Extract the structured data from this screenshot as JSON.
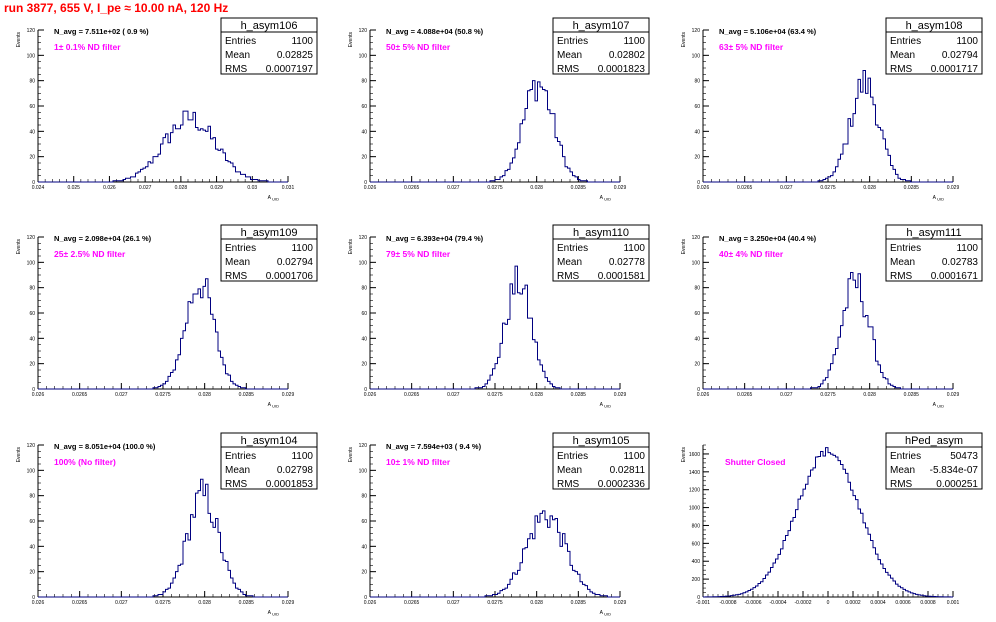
{
  "page_title": "run 3877,   655 V, I_pe ≈ 10.00 nA, 120 Hz",
  "chart_data": [
    {
      "type": "histogram",
      "name": "h_asym106",
      "navg": "N_avg = 7.511e+02 ( 0.9 %)",
      "note": "1± 0.1% ND filter",
      "stats": {
        "Entries": "1100",
        "Mean": "0.02825",
        "RMS": "0.0007197"
      },
      "xlim": [
        0.024,
        0.031
      ],
      "xticks": [
        "0.024",
        "0.025",
        "0.026",
        "0.027",
        "0.028",
        "0.029",
        "0.03",
        "0.031"
      ],
      "xlabel": "A_UID",
      "ylabel": "Events",
      "ylim": [
        0,
        120
      ],
      "yticks": [
        "0",
        "20",
        "40",
        "60",
        "80",
        "100",
        "120"
      ],
      "mean": 0.02825,
      "rms": 0.0007197,
      "peak": 50,
      "nbins": 100
    },
    {
      "type": "histogram",
      "name": "h_asym107",
      "navg": "N_avg = 4.088e+04 (50.8 %)",
      "note": "50± 5% ND filter",
      "stats": {
        "Entries": "1100",
        "Mean": "0.02802",
        "RMS": "0.0001823"
      },
      "xlim": [
        0.026,
        0.029
      ],
      "xticks": [
        "0.026",
        "0.0265",
        "0.027",
        "0.0275",
        "0.028",
        "0.0285",
        "0.029"
      ],
      "xlabel": "A_UID",
      "ylabel": "Events",
      "ylim": [
        0,
        120
      ],
      "yticks": [
        "0",
        "20",
        "40",
        "60",
        "80",
        "100",
        "120"
      ],
      "mean": 0.02802,
      "rms": 0.0001823,
      "peak": 78,
      "nbins": 100
    },
    {
      "type": "histogram",
      "name": "h_asym108",
      "navg": "N_avg = 5.106e+04 (63.4 %)",
      "note": "63± 5% ND filter",
      "stats": {
        "Entries": "1100",
        "Mean": "0.02794",
        "RMS": "0.0001717"
      },
      "xlim": [
        0.026,
        0.029
      ],
      "xticks": [
        "0.026",
        "0.0265",
        "0.027",
        "0.0275",
        "0.028",
        "0.0285",
        "0.029"
      ],
      "xlabel": "A_UID",
      "ylabel": "Events",
      "ylim": [
        0,
        120
      ],
      "yticks": [
        "0",
        "20",
        "40",
        "60",
        "80",
        "100",
        "120"
      ],
      "mean": 0.02794,
      "rms": 0.0001717,
      "peak": 78,
      "nbins": 100
    },
    {
      "type": "histogram",
      "name": "h_asym109",
      "navg": "N_avg = 2.098e+04 (26.1 %)",
      "note": "25± 2.5% ND filter",
      "stats": {
        "Entries": "1100",
        "Mean": "0.02794",
        "RMS": "0.0001706"
      },
      "xlim": [
        0.026,
        0.029
      ],
      "xticks": [
        "0.026",
        "0.0265",
        "0.027",
        "0.0275",
        "0.028",
        "0.0285",
        "0.029"
      ],
      "xlabel": "A_UID",
      "ylabel": "Events",
      "ylim": [
        0,
        120
      ],
      "yticks": [
        "0",
        "20",
        "40",
        "60",
        "80",
        "100",
        "120"
      ],
      "mean": 0.02794,
      "rms": 0.0001706,
      "peak": 84,
      "nbins": 100
    },
    {
      "type": "histogram",
      "name": "h_asym110",
      "navg": "N_avg = 6.393e+04 (79.4 %)",
      "note": "79± 5% ND filter",
      "stats": {
        "Entries": "1100",
        "Mean": "0.02778",
        "RMS": "0.0001581"
      },
      "xlim": [
        0.026,
        0.029
      ],
      "xticks": [
        "0.026",
        "0.0265",
        "0.027",
        "0.0275",
        "0.028",
        "0.0285",
        "0.029"
      ],
      "xlabel": "A_UID",
      "ylabel": "Events",
      "ylim": [
        0,
        120
      ],
      "yticks": [
        "0",
        "20",
        "40",
        "60",
        "80",
        "100",
        "120"
      ],
      "mean": 0.02778,
      "rms": 0.0001581,
      "peak": 84,
      "nbins": 100
    },
    {
      "type": "histogram",
      "name": "h_asym111",
      "navg": "N_avg = 3.250e+04 (40.4 %)",
      "note": "40± 4% ND filter",
      "stats": {
        "Entries": "1100",
        "Mean": "0.02783",
        "RMS": "0.0001671"
      },
      "xlim": [
        0.026,
        0.029
      ],
      "xticks": [
        "0.026",
        "0.0265",
        "0.027",
        "0.0275",
        "0.028",
        "0.0285",
        "0.029"
      ],
      "xlabel": "A_UID",
      "ylabel": "Events",
      "ylim": [
        0,
        120
      ],
      "yticks": [
        "0",
        "20",
        "40",
        "60",
        "80",
        "100",
        "120"
      ],
      "mean": 0.02783,
      "rms": 0.0001671,
      "peak": 83,
      "nbins": 100
    },
    {
      "type": "histogram",
      "name": "h_asym104",
      "navg": "N_avg = 8.051e+04 (100.0 %)",
      "note": "100% (No filter)",
      "stats": {
        "Entries": "1100",
        "Mean": "0.02798",
        "RMS": "0.0001853"
      },
      "xlim": [
        0.026,
        0.029
      ],
      "xticks": [
        "0.026",
        "0.0265",
        "0.027",
        "0.0275",
        "0.028",
        "0.0285",
        "0.029"
      ],
      "xlabel": "A_UID",
      "ylabel": "Events",
      "ylim": [
        0,
        120
      ],
      "yticks": [
        "0",
        "20",
        "40",
        "60",
        "80",
        "100",
        "120"
      ],
      "mean": 0.02798,
      "rms": 0.0001853,
      "peak": 80,
      "nbins": 100
    },
    {
      "type": "histogram",
      "name": "h_asym105",
      "navg": "N_avg = 7.594e+03 ( 9.4 %)",
      "note": "10± 1% ND filter",
      "stats": {
        "Entries": "1100",
        "Mean": "0.02811",
        "RMS": "0.0002336"
      },
      "xlim": [
        0.026,
        0.029
      ],
      "xticks": [
        "0.026",
        "0.0265",
        "0.027",
        "0.0275",
        "0.028",
        "0.0285",
        "0.029"
      ],
      "xlabel": "A_UID",
      "ylabel": "Events",
      "ylim": [
        0,
        120
      ],
      "yticks": [
        "0",
        "20",
        "40",
        "60",
        "80",
        "100",
        "120"
      ],
      "mean": 0.02811,
      "rms": 0.0002336,
      "peak": 65,
      "nbins": 100
    },
    {
      "type": "histogram",
      "name": "hPed_asym",
      "navg": "",
      "note": "Shutter Closed",
      "stats": {
        "Entries": "50473",
        "Mean": "-5.834e-07",
        "RMS": "0.000251"
      },
      "xlim": [
        -0.001,
        0.001
      ],
      "xticks": [
        "-0.001",
        "-0.0008",
        "-0.0006",
        "-0.0004",
        "-0.0002",
        "0",
        "0.0002",
        "0.0004",
        "0.0006",
        "0.0008",
        "0.001"
      ],
      "xlabel": "",
      "ylabel": "Events",
      "ylim": [
        0,
        1700
      ],
      "yticks": [
        "0",
        "200",
        "400",
        "600",
        "800",
        "1000",
        "1200",
        "1400",
        "1600"
      ],
      "mean": -5.834e-07,
      "rms": 0.000251,
      "peak": 1630,
      "nbins": 100
    }
  ]
}
